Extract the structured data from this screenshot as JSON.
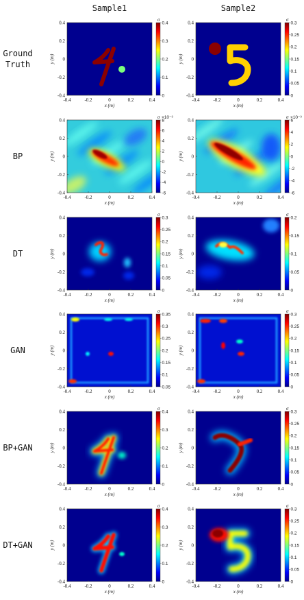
{
  "column_titles": [
    "Sample1",
    "Sample2"
  ],
  "row_labels": [
    [
      "Ground",
      "Truth"
    ],
    [
      "BP"
    ],
    [
      "DT"
    ],
    [
      "GAN"
    ],
    [
      "BP+GAN"
    ],
    [
      "DT+GAN"
    ]
  ],
  "axes": {
    "xlabel": "x (m)",
    "ylabel": "y (m)",
    "xticks": [
      "-0.4",
      "-0.2",
      "0",
      "0.2",
      "0.4"
    ],
    "yticks": [
      "0.4",
      "0.2",
      "0",
      "-0.2",
      "-0.4"
    ],
    "colorbar_unit": "σ",
    "colorbar_exponent": "×10⁻³"
  },
  "colors": {
    "background_blue": "#00008f",
    "dark_red": "#8b0000",
    "sample1_dot": "#7cff7c",
    "sample2_digit": "#ffd000"
  },
  "chart_data": [
    {
      "type": "heatmap",
      "row": "Ground Truth",
      "column": "Sample1",
      "xlim": [
        -0.4,
        0.4
      ],
      "ylim": [
        -0.4,
        0.4
      ],
      "colorbar_ticks": [
        "0",
        "0.1",
        "0.2",
        "0.3",
        "0.4"
      ],
      "colorbar_exponent": false
    },
    {
      "type": "heatmap",
      "row": "Ground Truth",
      "column": "Sample2",
      "xlim": [
        -0.4,
        0.4
      ],
      "ylim": [
        -0.4,
        0.4
      ],
      "colorbar_ticks": [
        "0",
        "0.05",
        "0.1",
        "0.15",
        "0.2",
        "0.25",
        "0.3"
      ],
      "colorbar_exponent": false
    },
    {
      "type": "heatmap",
      "row": "BP",
      "column": "Sample1",
      "xlim": [
        -0.4,
        0.4
      ],
      "ylim": [
        -0.4,
        0.4
      ],
      "colorbar_ticks": [
        "-6",
        "-4",
        "-2",
        "0",
        "2",
        "4",
        "6",
        "8"
      ],
      "colorbar_exponent": true
    },
    {
      "type": "heatmap",
      "row": "BP",
      "column": "Sample2",
      "xlim": [
        -0.4,
        0.4
      ],
      "ylim": [
        -0.4,
        0.4
      ],
      "colorbar_ticks": [
        "-6",
        "-4",
        "-2",
        "0",
        "2",
        "4",
        "6"
      ],
      "colorbar_exponent": true
    },
    {
      "type": "heatmap",
      "row": "DT",
      "column": "Sample1",
      "xlim": [
        -0.4,
        0.4
      ],
      "ylim": [
        -0.4,
        0.4
      ],
      "colorbar_ticks": [
        "0",
        "0.05",
        "0.1",
        "0.15",
        "0.2",
        "0.25",
        "0.3"
      ],
      "colorbar_exponent": false
    },
    {
      "type": "heatmap",
      "row": "DT",
      "column": "Sample2",
      "xlim": [
        -0.4,
        0.4
      ],
      "ylim": [
        -0.4,
        0.4
      ],
      "colorbar_ticks": [
        "0",
        "0.05",
        "0.1",
        "0.15",
        "0.2"
      ],
      "colorbar_exponent": false
    },
    {
      "type": "heatmap",
      "row": "GAN",
      "column": "Sample1",
      "xlim": [
        -0.4,
        0.4
      ],
      "ylim": [
        -0.4,
        0.4
      ],
      "colorbar_ticks": [
        "0.05",
        "0.1",
        "0.15",
        "0.2",
        "0.25",
        "0.3",
        "0.35"
      ],
      "colorbar_exponent": false
    },
    {
      "type": "heatmap",
      "row": "GAN",
      "column": "Sample2",
      "xlim": [
        -0.4,
        0.4
      ],
      "ylim": [
        -0.4,
        0.4
      ],
      "colorbar_ticks": [
        "0",
        "0.05",
        "0.1",
        "0.15",
        "0.2",
        "0.25",
        "0.3"
      ],
      "colorbar_exponent": false
    },
    {
      "type": "heatmap",
      "row": "BP+GAN",
      "column": "Sample1",
      "xlim": [
        -0.4,
        0.4
      ],
      "ylim": [
        -0.4,
        0.4
      ],
      "colorbar_ticks": [
        "0",
        "0.1",
        "0.2",
        "0.3",
        "0.4"
      ],
      "colorbar_exponent": false
    },
    {
      "type": "heatmap",
      "row": "BP+GAN",
      "column": "Sample2",
      "xlim": [
        -0.4,
        0.4
      ],
      "ylim": [
        -0.4,
        0.4
      ],
      "colorbar_ticks": [
        "0",
        "0.05",
        "0.1",
        "0.15",
        "0.2",
        "0.25",
        "0.3"
      ],
      "colorbar_exponent": false
    },
    {
      "type": "heatmap",
      "row": "DT+GAN",
      "column": "Sample1",
      "xlim": [
        -0.4,
        0.4
      ],
      "ylim": [
        -0.4,
        0.4
      ],
      "colorbar_ticks": [
        "0",
        "0.1",
        "0.2",
        "0.3",
        "0.4"
      ],
      "colorbar_exponent": false
    },
    {
      "type": "heatmap",
      "row": "DT+GAN",
      "column": "Sample2",
      "xlim": [
        -0.4,
        0.4
      ],
      "ylim": [
        -0.4,
        0.4
      ],
      "colorbar_ticks": [
        "0",
        "0.05",
        "0.1",
        "0.15",
        "0.2",
        "0.25",
        "0.3"
      ],
      "colorbar_exponent": false
    }
  ]
}
